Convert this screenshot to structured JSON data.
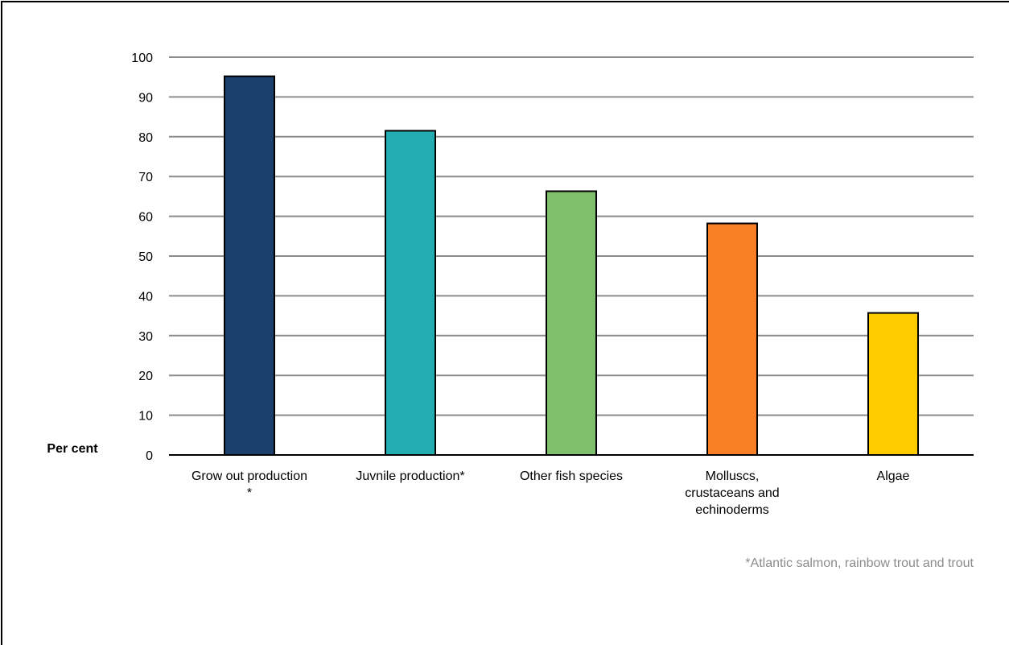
{
  "chart_data": {
    "type": "bar",
    "categories": [
      [
        "Grow out production",
        "*"
      ],
      [
        "Juvnile production*"
      ],
      [
        "Other fish species"
      ],
      [
        "Molluscs,",
        "crustaceans and",
        "echinoderms"
      ],
      [
        "Algae"
      ]
    ],
    "values": [
      95.2,
      81.5,
      66.3,
      58.2,
      35.7
    ],
    "colors": [
      "#1a406b",
      "#23adb1",
      "#7dbf6b",
      "#f97f25",
      "#ffcc00"
    ],
    "ylabel": "Per cent",
    "ylim": [
      0,
      100
    ],
    "yticks": [
      0,
      10,
      20,
      30,
      40,
      50,
      60,
      70,
      80,
      90,
      100
    ],
    "grid": true,
    "legend": "none",
    "footnote": "*Atlantic salmon, rainbow trout and trout"
  }
}
